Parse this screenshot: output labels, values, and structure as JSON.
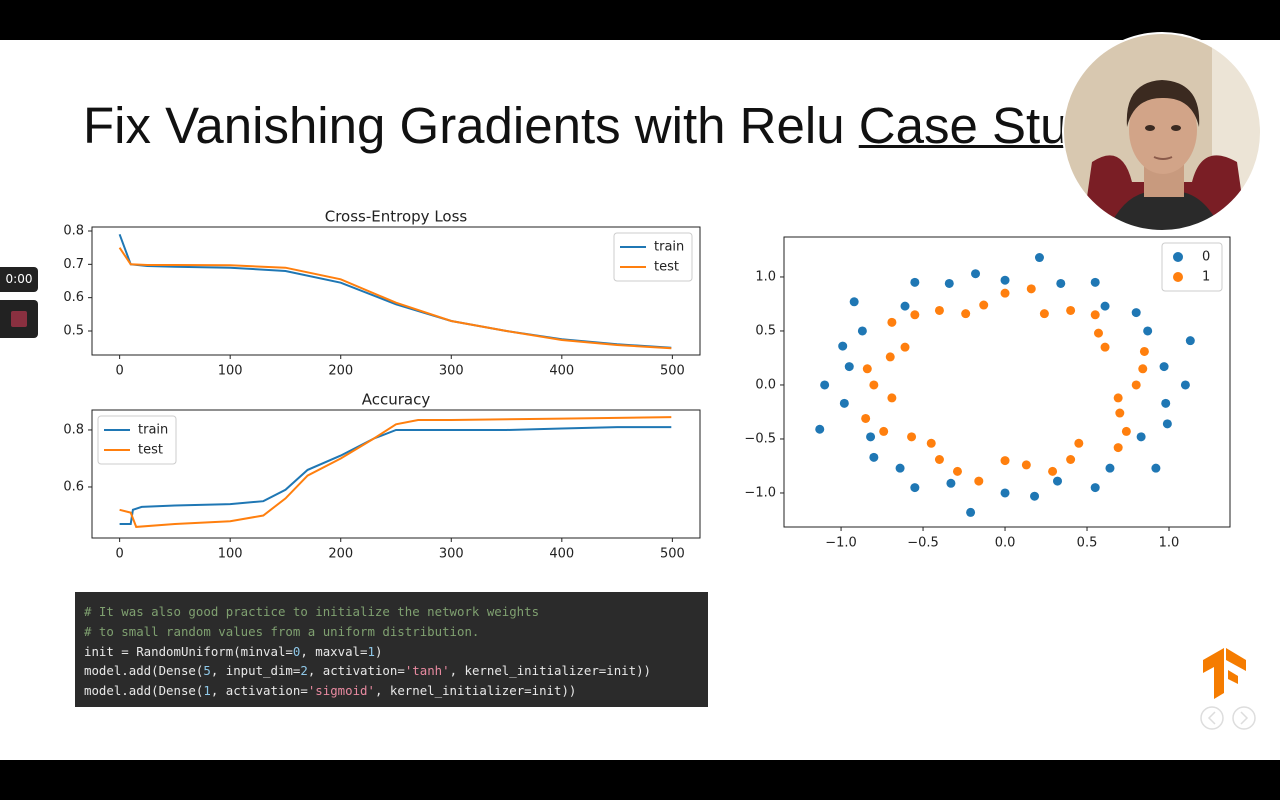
{
  "slide": {
    "title": "Fix Vanishing Gradients with Relu",
    "title_link": "Case Stu"
  },
  "player": {
    "time": "0:00"
  },
  "chart_data": [
    {
      "type": "line",
      "title": "Cross-Entropy Loss",
      "xlim": [
        -25,
        525
      ],
      "ylim": [
        0.428,
        0.812
      ],
      "xticks": [
        0,
        100,
        200,
        300,
        400,
        500
      ],
      "yticks": [
        0.5,
        0.6,
        0.7,
        0.8
      ],
      "legend": "upper right",
      "series": [
        {
          "name": "train",
          "color": "#1f77b4",
          "x": [
            0,
            10,
            25,
            50,
            100,
            150,
            200,
            250,
            300,
            350,
            400,
            450,
            499
          ],
          "values": [
            0.79,
            0.7,
            0.695,
            0.693,
            0.69,
            0.68,
            0.645,
            0.58,
            0.53,
            0.5,
            0.475,
            0.46,
            0.45
          ]
        },
        {
          "name": "test",
          "color": "#ff7f0e",
          "x": [
            0,
            10,
            25,
            50,
            100,
            150,
            200,
            250,
            300,
            350,
            400,
            450,
            499
          ],
          "values": [
            0.75,
            0.7,
            0.698,
            0.698,
            0.697,
            0.69,
            0.655,
            0.585,
            0.53,
            0.5,
            0.473,
            0.458,
            0.448
          ]
        }
      ]
    },
    {
      "type": "line",
      "title": "Accuracy",
      "xlim": [
        -25,
        525
      ],
      "ylim": [
        0.421,
        0.87
      ],
      "xticks": [
        0,
        100,
        200,
        300,
        400,
        500
      ],
      "yticks": [
        0.6,
        0.8
      ],
      "legend": "upper left",
      "series": [
        {
          "name": "train",
          "color": "#1f77b4",
          "x": [
            0,
            10,
            12,
            20,
            50,
            100,
            130,
            150,
            170,
            200,
            230,
            250,
            300,
            350,
            400,
            450,
            499
          ],
          "values": [
            0.47,
            0.47,
            0.52,
            0.53,
            0.535,
            0.54,
            0.55,
            0.59,
            0.66,
            0.71,
            0.77,
            0.8,
            0.8,
            0.8,
            0.805,
            0.81,
            0.81
          ]
        },
        {
          "name": "test",
          "color": "#ff7f0e",
          "x": [
            0,
            10,
            15,
            50,
            100,
            130,
            150,
            170,
            200,
            230,
            250,
            270,
            300,
            400,
            499
          ],
          "values": [
            0.52,
            0.51,
            0.46,
            0.47,
            0.48,
            0.5,
            0.56,
            0.64,
            0.7,
            0.77,
            0.82,
            0.835,
            0.835,
            0.84,
            0.845
          ]
        }
      ]
    },
    {
      "type": "scatter",
      "xlim": [
        -1.348,
        1.372
      ],
      "ylim": [
        -1.315,
        1.37
      ],
      "legend": "upper right",
      "xticks": [
        {
          "value": -1.0,
          "label": "−1.0"
        },
        {
          "value": -0.5,
          "label": "−0.5"
        },
        {
          "value": 0.0,
          "label": "0.0"
        },
        {
          "value": 0.5,
          "label": "0.5"
        },
        {
          "value": 1.0,
          "label": "1.0"
        }
      ],
      "yticks": [
        {
          "value": -1.0,
          "label": "−1.0"
        },
        {
          "value": -0.5,
          "label": "−0.5"
        },
        {
          "value": 0.0,
          "label": "0.0"
        },
        {
          "value": 0.5,
          "label": "0.5"
        },
        {
          "value": 1.0,
          "label": "1.0"
        }
      ],
      "series": [
        {
          "name": "0",
          "color": "#1f77b4",
          "x": [
            1.1,
            1.13,
            0.8,
            0.55,
            0.21,
            -0.18,
            -0.55,
            -0.92,
            -0.99,
            -1.1,
            -1.13,
            -0.8,
            -0.55,
            -0.21,
            0.18,
            0.55,
            0.92,
            0.99,
            0.97,
            0.87,
            0.61,
            0.34,
            0,
            -0.34,
            -0.61,
            -0.87,
            -0.95,
            -0.98,
            -0.82,
            -0.64,
            -0.33,
            0,
            0.32,
            0.64,
            0.83,
            0.98
          ],
          "values": [
            0,
            0.41,
            0.67,
            0.95,
            1.18,
            1.03,
            0.95,
            0.77,
            0.36,
            0,
            -0.41,
            -0.67,
            -0.95,
            -1.18,
            -1.03,
            -0.95,
            -0.77,
            -0.36,
            0.17,
            0.5,
            0.73,
            0.94,
            0.97,
            0.94,
            0.73,
            0.5,
            0.17,
            -0.17,
            -0.48,
            -0.77,
            -0.91,
            -1.0,
            -0.89,
            -0.77,
            -0.48,
            -0.17
          ]
        },
        {
          "name": "1",
          "color": "#ff7f0e",
          "x": [
            0.8,
            0.85,
            0.57,
            0.4,
            0.16,
            -0.13,
            -0.4,
            -0.69,
            -0.7,
            -0.8,
            -0.85,
            -0.57,
            -0.4,
            -0.16,
            0.13,
            0.4,
            0.69,
            0.7,
            0.84,
            0.61,
            0.55,
            0.24,
            0,
            -0.24,
            -0.55,
            -0.61,
            -0.84,
            -0.69,
            -0.74,
            -0.45,
            -0.29,
            0,
            0.29,
            0.45,
            0.74,
            0.69
          ],
          "values": [
            0,
            0.31,
            0.48,
            0.69,
            0.89,
            0.74,
            0.69,
            0.58,
            0.26,
            0,
            -0.31,
            -0.48,
            -0.69,
            -0.89,
            -0.74,
            -0.69,
            -0.58,
            -0.26,
            0.15,
            0.35,
            0.65,
            0.66,
            0.85,
            0.66,
            0.65,
            0.35,
            0.15,
            -0.12,
            -0.43,
            -0.54,
            -0.8,
            -0.7,
            -0.8,
            -0.54,
            -0.43,
            -0.12
          ]
        }
      ]
    }
  ],
  "code": {
    "lines": [
      [
        {
          "text": "# It was also good practice to initialize the network weights",
          "color": "#7fa070"
        }
      ],
      [
        {
          "text": "# to small random values from a uniform distribution.",
          "color": "#7fa070"
        }
      ],
      [
        {
          "text": "init = RandomUniform(minval=",
          "color": "#e8e8e8"
        },
        {
          "text": "0",
          "color": "#8fc8e8"
        },
        {
          "text": ", maxval=",
          "color": "#e8e8e8"
        },
        {
          "text": "1",
          "color": "#8fc8e8"
        },
        {
          "text": ")",
          "color": "#e8e8e8"
        }
      ],
      [
        {
          "text": "model.add(Dense(",
          "color": "#e8e8e8"
        },
        {
          "text": "5",
          "color": "#8fc8e8"
        },
        {
          "text": ", input_dim=",
          "color": "#e8e8e8"
        },
        {
          "text": "2",
          "color": "#8fc8e8"
        },
        {
          "text": ", activation=",
          "color": "#e8e8e8"
        },
        {
          "text": "'tanh'",
          "color": "#e88aa0"
        },
        {
          "text": ", kernel_initializer=init))",
          "color": "#e8e8e8"
        }
      ],
      [
        {
          "text": "model.add(Dense(",
          "color": "#e8e8e8"
        },
        {
          "text": "1",
          "color": "#8fc8e8"
        },
        {
          "text": ", activation=",
          "color": "#e8e8e8"
        },
        {
          "text": "'sigmoid'",
          "color": "#e88aa0"
        },
        {
          "text": ", kernel_initializer=init))",
          "color": "#e8e8e8"
        }
      ]
    ]
  }
}
